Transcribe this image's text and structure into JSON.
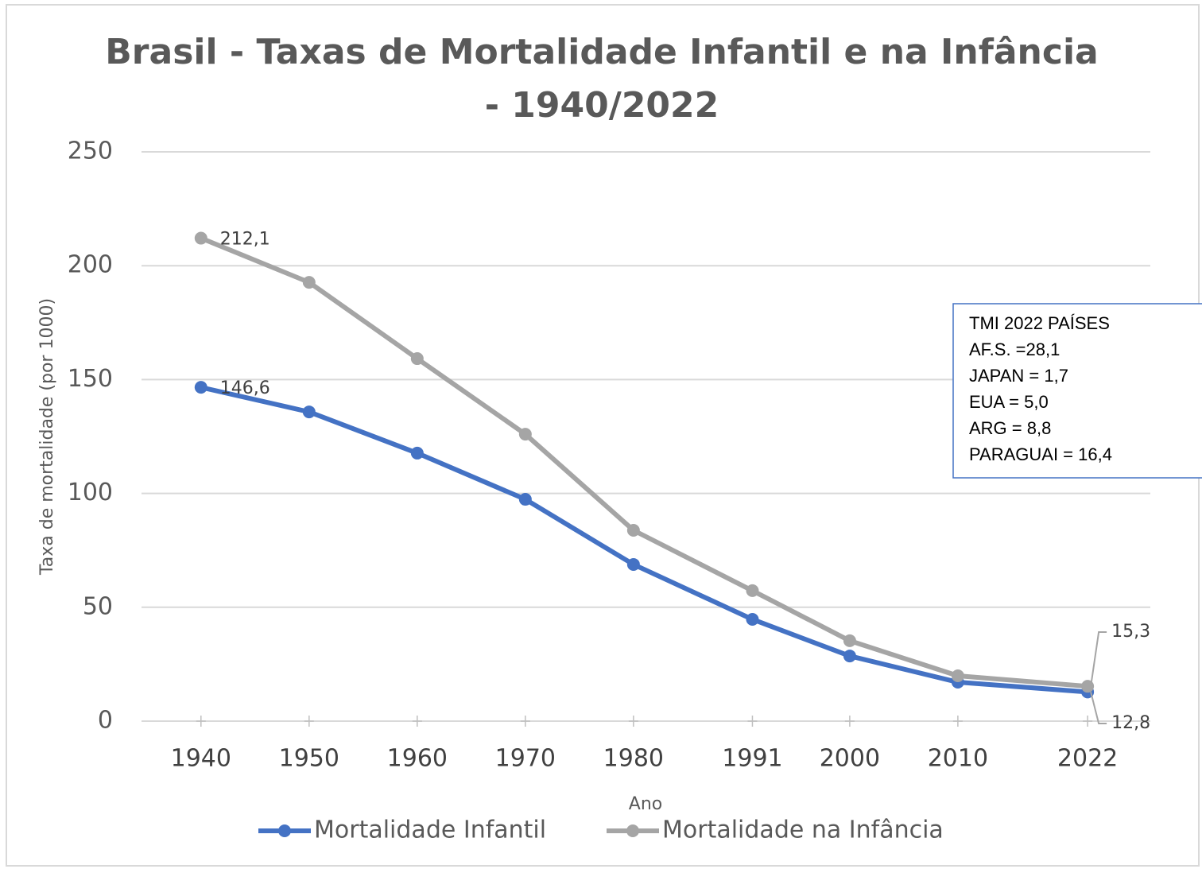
{
  "chart_data": {
    "type": "line",
    "title": [
      "Brasil - Taxas de Mortalidade Infantil e na Infância",
      "- 1940/2022"
    ],
    "x_label": "Ano",
    "y_label": "Taxa de mortalidade (por 1000)",
    "x": [
      1940,
      1950,
      1960,
      1970,
      1980,
      1991,
      2000,
      2010,
      2022
    ],
    "xticks": [
      1940,
      1950,
      1960,
      1970,
      1980,
      1991,
      2000,
      2010,
      2022
    ],
    "xlim": [
      1934.5,
      2027.8
    ],
    "ylim": [
      0,
      250
    ],
    "yticks": [
      0,
      50,
      100,
      150,
      200,
      250
    ],
    "grid": true,
    "legend": "bottom",
    "series": [
      {
        "name": "Mortalidade Infantil",
        "color": "#4472c4",
        "values": [
          146.6,
          135.8,
          117.7,
          97.4,
          68.8,
          44.7,
          28.6,
          17.1,
          12.8
        ],
        "value_labels": [
          "146,6",
          null,
          null,
          null,
          null,
          null,
          null,
          null,
          "12,8"
        ]
      },
      {
        "name": "Mortalidade na Infância",
        "color": "#a5a5a5",
        "values": [
          212.1,
          192.7,
          159.2,
          126.0,
          83.8,
          57.3,
          35.3,
          19.9,
          15.3
        ],
        "value_labels": [
          "212,1",
          null,
          null,
          null,
          null,
          null,
          null,
          null,
          "15,3"
        ]
      }
    ],
    "annotation": [
      "TMI 2022 PAÍSES",
      "AF.S. =28,1",
      "JAPAN = 1,7",
      "EUA = 5,0",
      "ARG = 8,8",
      "PARAGUAI = 16,4"
    ]
  }
}
